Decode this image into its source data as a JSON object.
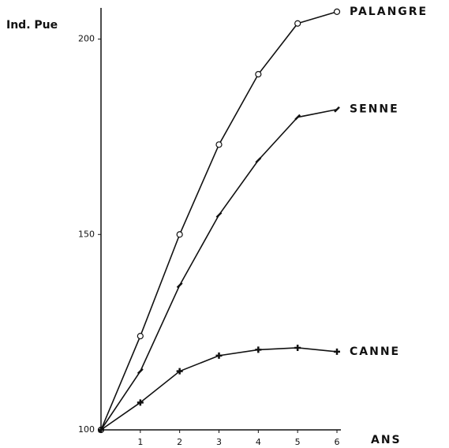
{
  "chart_data": {
    "type": "line",
    "title": "Ind. Pue",
    "x_label": "ANS",
    "x": [
      0,
      1,
      2,
      3,
      4,
      5,
      6
    ],
    "xlim": [
      0,
      6
    ],
    "xticks": [
      1,
      2,
      3,
      4,
      5,
      6
    ],
    "ylim": [
      100,
      210
    ],
    "yticks": [
      100,
      150,
      200
    ],
    "grid": false,
    "series": [
      {
        "name": "PALANGRE",
        "color": "#111111",
        "marker": "circle",
        "values": [
          100,
          124,
          150,
          173,
          191,
          204,
          207
        ]
      },
      {
        "name": "SENNE",
        "color": "#111111",
        "marker": "tick",
        "values": [
          100,
          115,
          137,
          155,
          169,
          180,
          182
        ]
      },
      {
        "name": "CANNE",
        "color": "#111111",
        "marker": "cross",
        "values": [
          100,
          107,
          115,
          119,
          120.5,
          121,
          120
        ]
      }
    ]
  }
}
